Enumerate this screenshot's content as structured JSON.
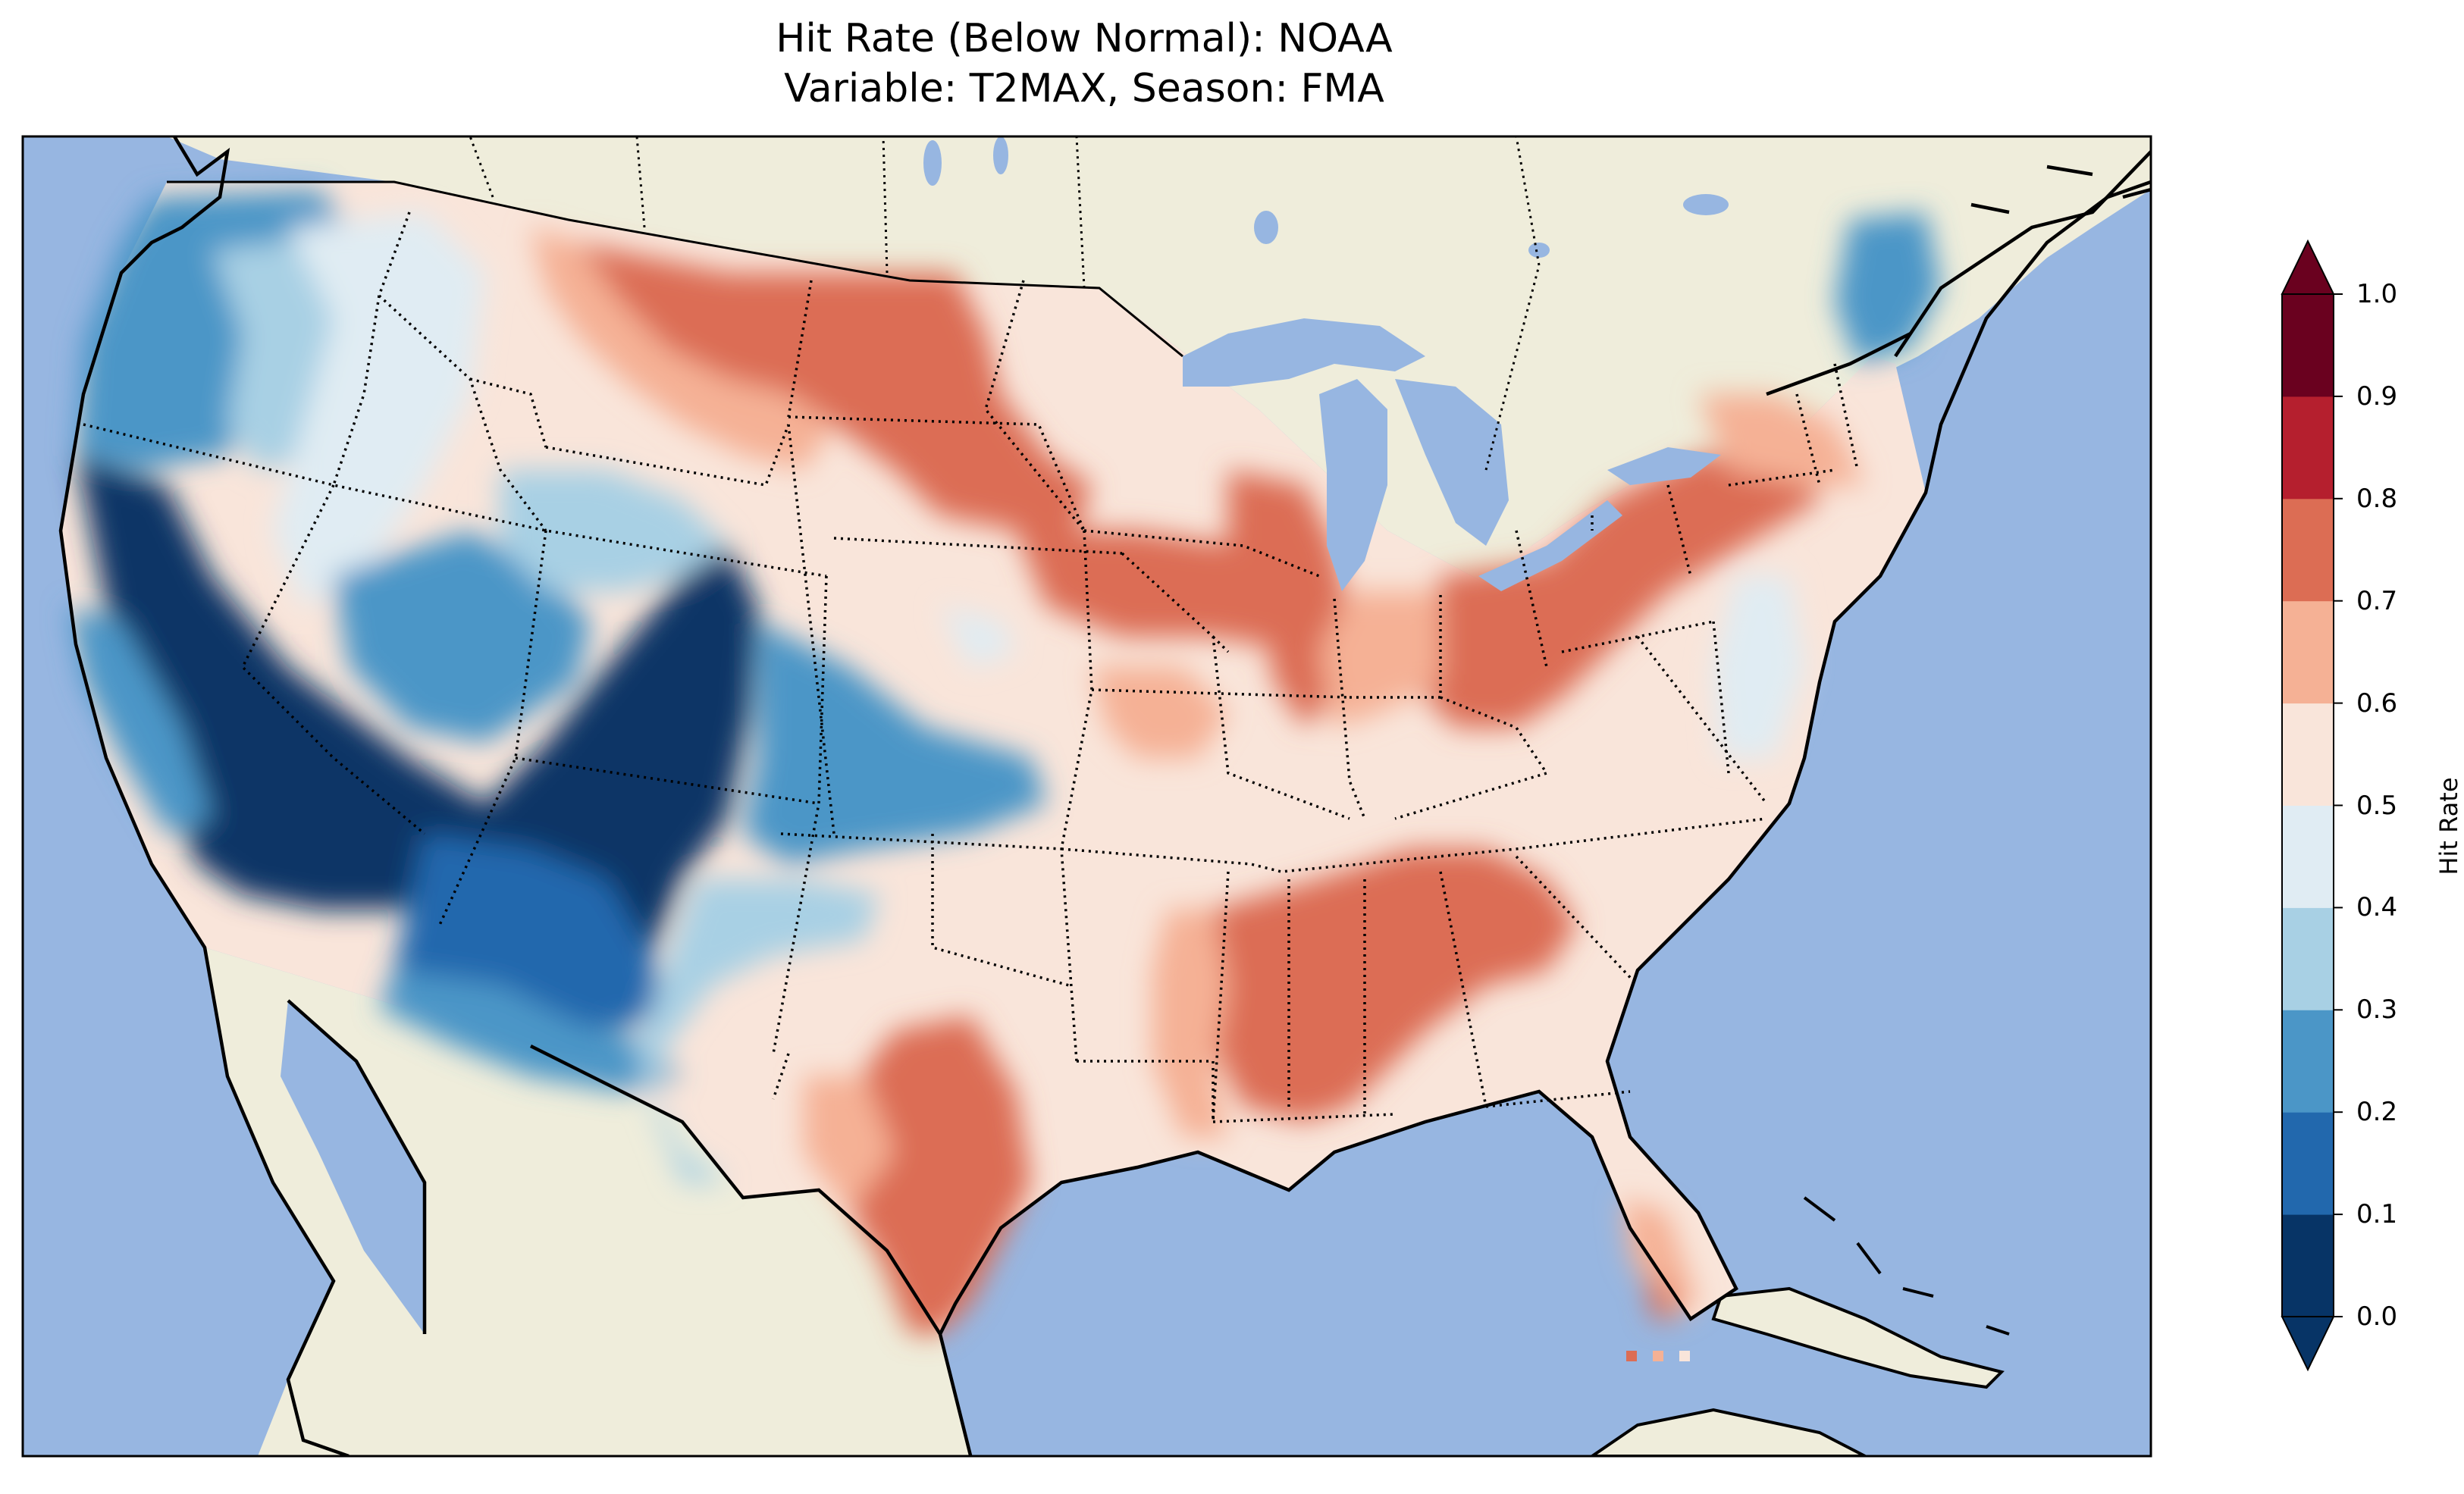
{
  "title": {
    "line1": "Hit Rate (Below Normal): NOAA",
    "line2": "Variable: T2MAX, Season: FMA"
  },
  "colors": {
    "ocean": "#97b6e1",
    "land": "#efeddb",
    "bins": [
      "#073466",
      "#2268ad",
      "#4b96c7",
      "#a8d0e4",
      "#e0ecf3",
      "#f9e5da",
      "#f5b195",
      "#dc6d54",
      "#b51f2e",
      "#6a011f"
    ]
  },
  "colorbar": {
    "label": "Hit Rate",
    "ticks": [
      "0.0",
      "0.1",
      "0.2",
      "0.3",
      "0.4",
      "0.5",
      "0.6",
      "0.7",
      "0.8",
      "0.9",
      "1.0"
    ],
    "extend": "both"
  },
  "map_data": {
    "projection": "Lambert Conformal, Contiguous United States",
    "variable": "T2MAX",
    "season": "FMA",
    "metric": "Hit Rate (Below Normal)",
    "model": "NOAA",
    "regions": [
      {
        "name": "Pacific Northwest coast",
        "value": 0.25
      },
      {
        "name": "Northern California",
        "value": 0.05
      },
      {
        "name": "Great Basin / Nevada",
        "value": 0.05
      },
      {
        "name": "Utah / Colorado / New Mexico",
        "value": 0.05
      },
      {
        "name": "Arizona",
        "value": 0.15
      },
      {
        "name": "Idaho / western Montana",
        "value": 0.45
      },
      {
        "name": "Wyoming / eastern Colorado",
        "value": 0.3
      },
      {
        "name": "Northern Plains",
        "value": 0.75
      },
      {
        "name": "Upper Midwest",
        "value": 0.55
      },
      {
        "name": "Ohio Valley / Mid-Atlantic",
        "value": 0.75
      },
      {
        "name": "New England",
        "value": 0.65
      },
      {
        "name": "Maine",
        "value": 0.3
      },
      {
        "name": "Southeast (MS, AL, GA)",
        "value": 0.75
      },
      {
        "name": "Texas",
        "value": 0.75
      },
      {
        "name": "Florida peninsula",
        "value": 0.65
      },
      {
        "name": "Carolinas",
        "value": 0.55
      }
    ]
  }
}
